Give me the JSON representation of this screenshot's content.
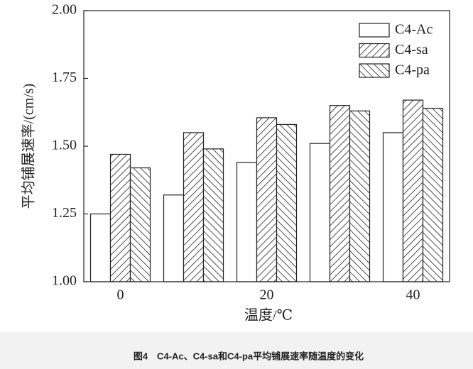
{
  "chart_data": {
    "type": "bar",
    "x_label": "温度/℃",
    "y_label": "平均铺展速率/(cm/s)",
    "caption": "图4　C4-Ac、C4-sa和C4-pa平均铺展速率随温度的变化",
    "categories": [
      "0",
      null,
      "20",
      null,
      "40"
    ],
    "series": [
      {
        "name": "C4-Ac",
        "color": "#222222",
        "hatch": "none",
        "values": [
          1.25,
          1.32,
          1.44,
          1.51,
          1.55
        ]
      },
      {
        "name": "C4-sa",
        "color": "#222222",
        "hatch": "forward",
        "values": [
          1.47,
          1.55,
          1.605,
          1.65,
          1.67
        ]
      },
      {
        "name": "C4-pa",
        "color": "#222222",
        "hatch": "backward",
        "values": [
          1.42,
          1.49,
          1.58,
          1.63,
          1.64
        ]
      }
    ],
    "ylim": [
      1.0,
      2.0
    ],
    "yticks": [
      {
        "value": 1.0,
        "label": "1.00"
      },
      {
        "value": 1.25,
        "label": "1.25"
      },
      {
        "value": 1.5,
        "label": "1.50"
      },
      {
        "value": 1.75,
        "label": "1.75"
      },
      {
        "value": 2.0,
        "label": "2.00"
      }
    ],
    "legend": "upper right",
    "grid": false
  }
}
